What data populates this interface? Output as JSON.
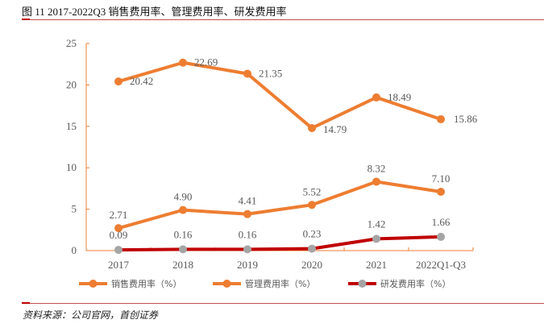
{
  "title": "图 11 2017-2022Q3 销售费用率、管理费用率、研发费用率",
  "source": "资料来源：公司官网，首创证券",
  "colors": {
    "sales": "#ed7d31",
    "admin": "#ed7d31",
    "rd_line": "#c00000",
    "rd_marker": "#a5a5a5",
    "axis": "#ed7d31",
    "rule": "#c0504d"
  },
  "chart_data": {
    "type": "line",
    "title": "图 11 2017-2022Q3 销售费用率、管理费用率、研发费用率",
    "xlabel": "",
    "ylabel": "",
    "categories": [
      "2017",
      "2018",
      "2019",
      "2020",
      "2021",
      "2022Q1-Q3"
    ],
    "ylim": [
      0,
      25
    ],
    "yticks": [
      "0",
      "5",
      "10",
      "15",
      "20",
      "25"
    ],
    "grid": false,
    "legend_position": "bottom",
    "series": [
      {
        "name": "销售费用率（%）",
        "values": [
          20.42,
          22.69,
          21.35,
          14.79,
          18.49,
          15.86
        ],
        "labels": [
          "20.42",
          "22.69",
          "21.35",
          "14.79",
          "18.49",
          "15.86"
        ]
      },
      {
        "name": "管理费用率（%）",
        "values": [
          2.71,
          4.9,
          4.41,
          5.52,
          8.32,
          7.1
        ],
        "labels": [
          "2.71",
          "4.90",
          "4.41",
          "5.52",
          "8.32",
          "7.10"
        ]
      },
      {
        "name": "研发费用率（%）",
        "values": [
          0.09,
          0.16,
          0.16,
          0.23,
          1.42,
          1.66
        ],
        "labels": [
          "0.09",
          "0.16",
          "0.16",
          "0.23",
          "1.42",
          "1.66"
        ]
      }
    ]
  }
}
